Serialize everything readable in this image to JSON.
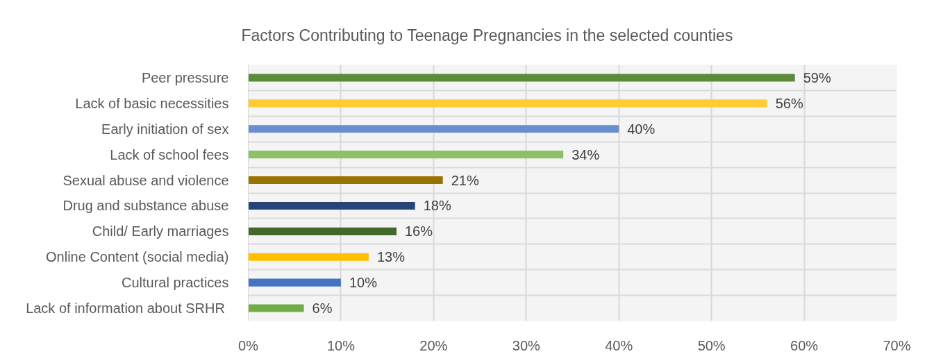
{
  "chart_data": {
    "type": "bar",
    "orientation": "horizontal",
    "title": "Factors Contributing to Teenage Pregnancies in the selected counties",
    "categories": [
      "Peer pressure",
      "Lack of basic necessities",
      "Early initiation of sex",
      "Lack of school fees",
      "Sexual abuse and violence",
      "Drug and substance abuse",
      "Child/ Early marriages",
      "Online Content (social media)",
      "Cultural practices",
      "Lack of information about  SRHR"
    ],
    "values": [
      59,
      56,
      40,
      34,
      21,
      18,
      16,
      13,
      10,
      6
    ],
    "value_labels": [
      "59%",
      "56%",
      "40%",
      "34%",
      "21%",
      "18%",
      "16%",
      "13%",
      "10%",
      "6%"
    ],
    "colors": [
      "#5a8a3a",
      "#ffcd33",
      "#698ed0",
      "#8cc168",
      "#997300",
      "#264478",
      "#43682b",
      "#ffc000",
      "#4472c4",
      "#70ad47"
    ],
    "xlim": [
      0,
      70
    ],
    "xticks": [
      {
        "value": 0,
        "label": "0%"
      },
      {
        "value": 10,
        "label": "10%"
      },
      {
        "value": 20,
        "label": "20%"
      },
      {
        "value": 30,
        "label": "30%"
      },
      {
        "value": 40,
        "label": "40%"
      },
      {
        "value": 50,
        "label": "50%"
      },
      {
        "value": 60,
        "label": "60%"
      },
      {
        "value": 70,
        "label": "70%"
      }
    ],
    "grid": true
  }
}
